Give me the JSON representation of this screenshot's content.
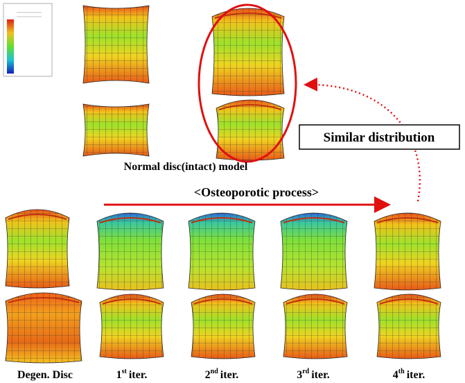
{
  "normal": {
    "caption": "Normal disc(intact) model",
    "callout": "Similar distribution"
  },
  "process": {
    "title": "<Osteoporotic process>"
  },
  "stages": [
    {
      "label": "Degen. Disc"
    },
    {
      "number": "1",
      "suffix": "st",
      "text": "iter."
    },
    {
      "number": "2",
      "suffix": "nd",
      "text": "iter."
    },
    {
      "number": "3",
      "suffix": "rd",
      "text": "iter."
    },
    {
      "number": "4",
      "suffix": "th",
      "text": "iter."
    }
  ]
}
